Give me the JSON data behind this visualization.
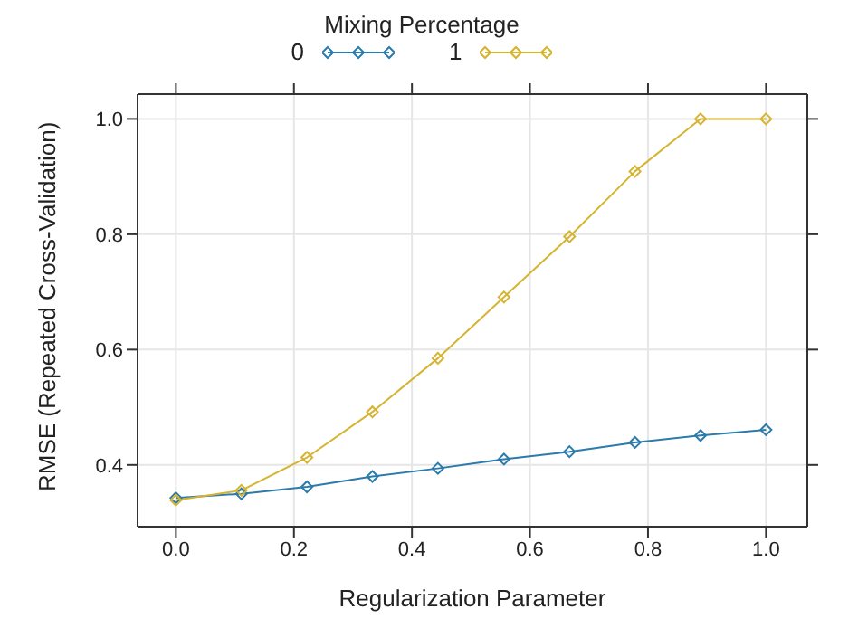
{
  "chart_data": {
    "type": "line",
    "xlabel": "Regularization Parameter",
    "ylabel": "RMSE (Repeated Cross-Validation)",
    "legend_title": "Mixing Percentage",
    "legend": "top",
    "grid": true,
    "marker": "diamond",
    "line_style": "solid",
    "x": [
      0,
      0.111,
      0.222,
      0.333,
      0.444,
      0.556,
      0.667,
      0.778,
      0.889,
      1.0
    ],
    "series": [
      {
        "name": "0",
        "color": "#2b7bab",
        "values": [
          0.343,
          0.35,
          0.362,
          0.38,
          0.394,
          0.41,
          0.423,
          0.439,
          0.451,
          0.461
        ]
      },
      {
        "name": "1",
        "color": "#d6b331",
        "values": [
          0.339,
          0.356,
          0.413,
          0.492,
          0.585,
          0.691,
          0.796,
          0.909,
          1.0,
          1.0
        ]
      }
    ],
    "xlim": [
      -0.065,
      1.07
    ],
    "xticks": [
      {
        "value": 0,
        "label": "0.0"
      },
      0.2,
      0.4,
      0.6,
      0.8,
      {
        "value": 1,
        "label": "1.0"
      }
    ],
    "ylim": [
      0.293,
      1.043
    ],
    "yticks": [
      0.4,
      0.6,
      0.8,
      {
        "value": 1,
        "label": "1.0"
      }
    ]
  }
}
